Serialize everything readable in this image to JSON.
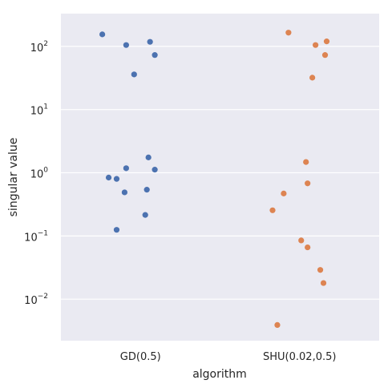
{
  "chart_data": {
    "type": "scatter",
    "variant": "strip",
    "xlabel": "algorithm",
    "ylabel": "singular value",
    "yscale": "log",
    "ylim": [
      0.0022,
      330
    ],
    "grid": true,
    "background": "#eaeaf2",
    "categories": [
      "GD(0.5)",
      "SHU(0.02,0.5)"
    ],
    "y_ticks": [
      {
        "base": "10",
        "exp": "2",
        "value": 100
      },
      {
        "base": "10",
        "exp": "1",
        "value": 10
      },
      {
        "base": "10",
        "exp": "0",
        "value": 1
      },
      {
        "base": "10",
        "exp": "−1",
        "value": 0.1
      },
      {
        "base": "10",
        "exp": "−2",
        "value": 0.01
      }
    ],
    "series": [
      {
        "category": "GD(0.5)",
        "color": "#4c72b0",
        "points": [
          {
            "jitter": -0.24,
            "y": 155
          },
          {
            "jitter": 0.06,
            "y": 118
          },
          {
            "jitter": -0.09,
            "y": 105
          },
          {
            "jitter": 0.09,
            "y": 73
          },
          {
            "jitter": -0.04,
            "y": 36
          },
          {
            "jitter": 0.05,
            "y": 1.75
          },
          {
            "jitter": -0.09,
            "y": 1.18
          },
          {
            "jitter": 0.09,
            "y": 1.12
          },
          {
            "jitter": -0.2,
            "y": 0.84
          },
          {
            "jitter": -0.15,
            "y": 0.8
          },
          {
            "jitter": 0.04,
            "y": 0.54
          },
          {
            "jitter": -0.1,
            "y": 0.49
          },
          {
            "jitter": 0.03,
            "y": 0.215
          },
          {
            "jitter": -0.15,
            "y": 0.125
          }
        ]
      },
      {
        "category": "SHU(0.02,0.5)",
        "color": "#dd8452",
        "points": [
          {
            "jitter": -0.07,
            "y": 165
          },
          {
            "jitter": 0.17,
            "y": 120
          },
          {
            "jitter": 0.1,
            "y": 105
          },
          {
            "jitter": 0.16,
            "y": 73
          },
          {
            "jitter": 0.08,
            "y": 32
          },
          {
            "jitter": 0.04,
            "y": 1.48
          },
          {
            "jitter": 0.05,
            "y": 0.68
          },
          {
            "jitter": -0.1,
            "y": 0.47
          },
          {
            "jitter": -0.17,
            "y": 0.255
          },
          {
            "jitter": 0.01,
            "y": 0.085
          },
          {
            "jitter": 0.05,
            "y": 0.066
          },
          {
            "jitter": 0.13,
            "y": 0.029
          },
          {
            "jitter": 0.15,
            "y": 0.018
          },
          {
            "jitter": -0.14,
            "y": 0.0039
          }
        ]
      }
    ]
  }
}
